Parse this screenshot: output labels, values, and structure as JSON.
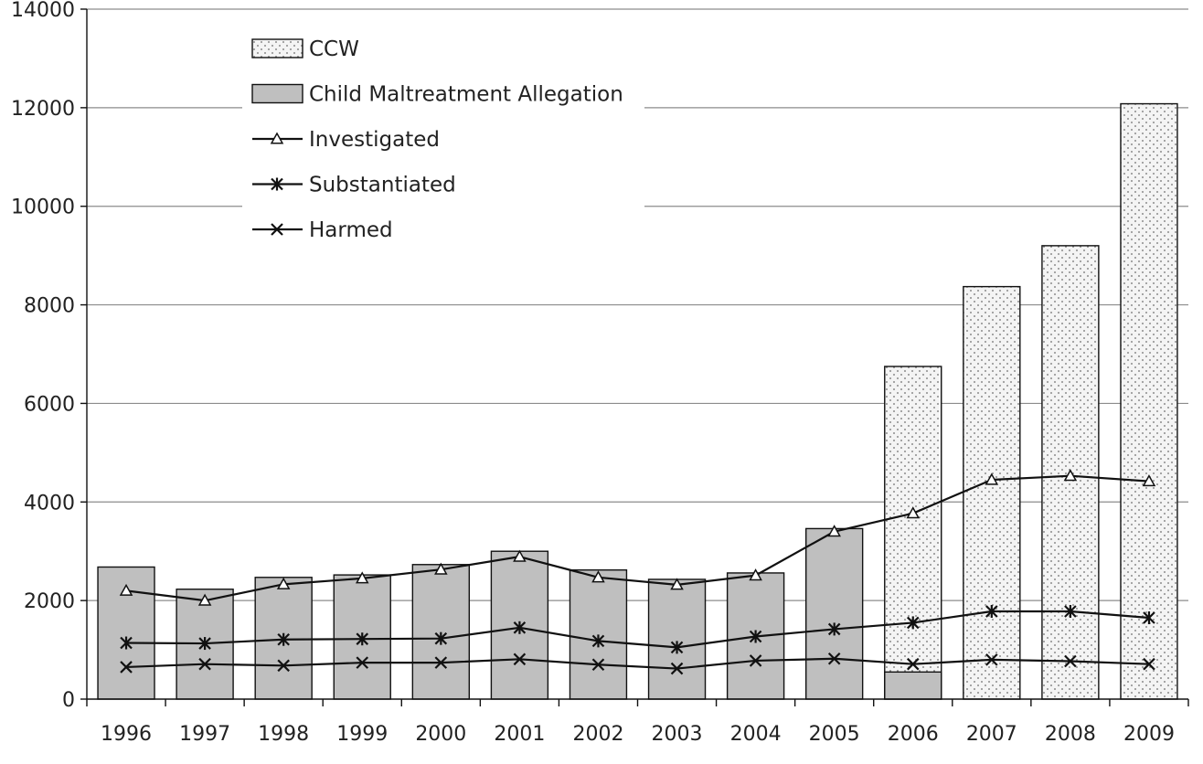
{
  "chart_data": {
    "type": "bar",
    "title": "",
    "xlabel": "",
    "ylabel": "",
    "ylim": [
      0,
      14000
    ],
    "yticks": [
      0,
      2000,
      4000,
      6000,
      8000,
      10000,
      12000,
      14000
    ],
    "ytick_labels": [
      "0",
      "2000",
      "4000",
      "6000",
      "8000",
      "10000",
      "12000",
      "14000"
    ],
    "categories": [
      "1996",
      "1997",
      "1998",
      "1999",
      "2000",
      "2001",
      "2002",
      "2003",
      "2004",
      "2005",
      "2006",
      "2007",
      "2008",
      "2009"
    ],
    "grid": "horizontal",
    "legend_position": "top-left",
    "series": [
      {
        "name": "CCW",
        "kind": "bar",
        "pattern": "dotted",
        "fill": "#f2f2f2",
        "values": [
          null,
          null,
          null,
          null,
          null,
          null,
          null,
          null,
          null,
          null,
          6750,
          8370,
          9200,
          12080
        ]
      },
      {
        "name": "Child Maltreatment Allegation",
        "kind": "bar",
        "pattern": "solid",
        "fill": "#bfbfbf",
        "values": [
          2680,
          2230,
          2470,
          2520,
          2730,
          3000,
          2620,
          2430,
          2560,
          3460,
          550,
          null,
          null,
          null
        ]
      },
      {
        "name": "Investigated",
        "kind": "line",
        "marker": "triangle",
        "values": [
          2200,
          2000,
          2330,
          2450,
          2630,
          2890,
          2470,
          2320,
          2510,
          3400,
          3770,
          4450,
          4530,
          4420
        ]
      },
      {
        "name": "Substantiated",
        "kind": "line",
        "marker": "asterisk",
        "values": [
          1140,
          1130,
          1210,
          1220,
          1230,
          1450,
          1180,
          1050,
          1270,
          1420,
          1550,
          1780,
          1780,
          1650
        ]
      },
      {
        "name": "Harmed",
        "kind": "line",
        "marker": "x",
        "values": [
          650,
          710,
          680,
          740,
          740,
          810,
          700,
          620,
          780,
          820,
          710,
          800,
          770,
          710
        ]
      }
    ]
  }
}
